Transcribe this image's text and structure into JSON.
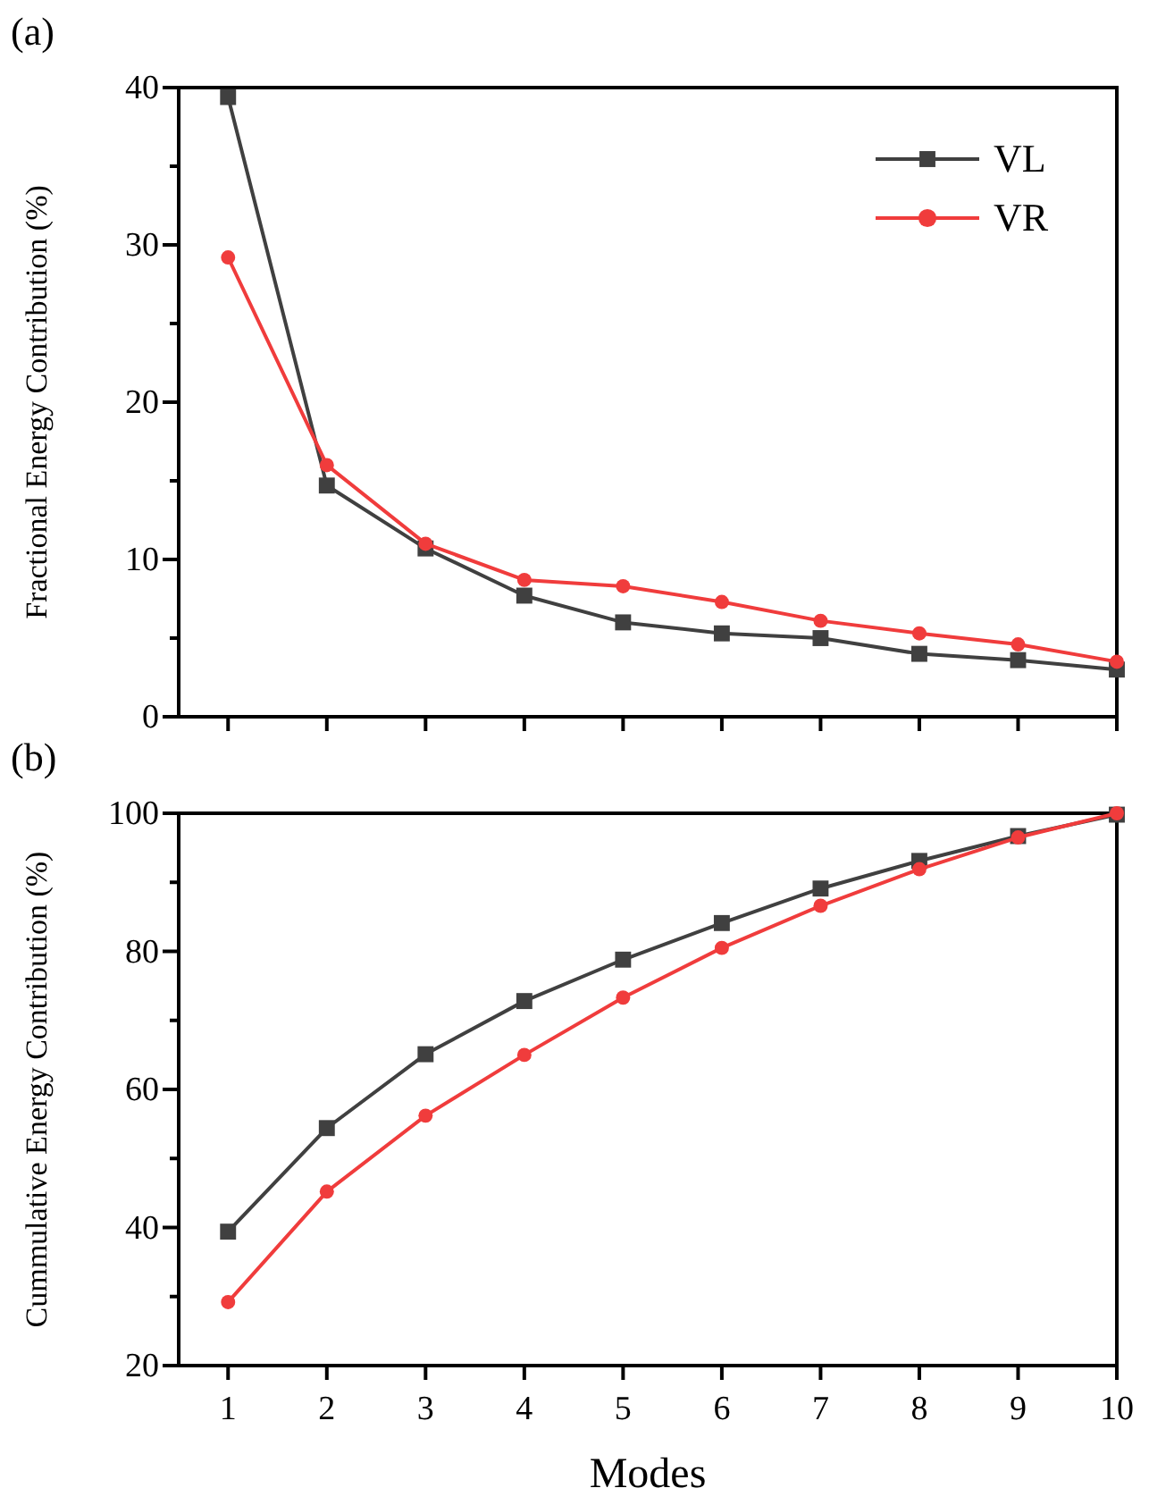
{
  "chart_data": [
    {
      "type": "line",
      "title": "(a)",
      "ylabel": "Fractional Energy Contribution (%)",
      "x": [
        1,
        2,
        3,
        4,
        5,
        6,
        7,
        8,
        9,
        10
      ],
      "xlim": [
        0.5,
        10
      ],
      "xticks": [
        {
          "value": 1,
          "label": null
        },
        {
          "value": 2,
          "label": null
        },
        {
          "value": 3,
          "label": null
        },
        {
          "value": 4,
          "label": null
        },
        {
          "value": 5,
          "label": null
        },
        {
          "value": 6,
          "label": null
        },
        {
          "value": 7,
          "label": null
        },
        {
          "value": 8,
          "label": null
        },
        {
          "value": 9,
          "label": null
        },
        {
          "value": 10,
          "label": null
        }
      ],
      "ylim": [
        0,
        40
      ],
      "yticks": [
        0,
        {
          "value": 5,
          "label": null
        },
        10,
        {
          "value": 15,
          "label": null
        },
        20,
        {
          "value": 25,
          "label": null
        },
        30,
        {
          "value": 35,
          "label": null
        },
        40
      ],
      "tick_labels": "y",
      "grid": false,
      "legend": "top right",
      "series": [
        {
          "name": "VL",
          "color": "#404040",
          "marker": "square",
          "values": [
            39.4,
            14.7,
            10.7,
            7.7,
            6.0,
            5.3,
            5.0,
            4.0,
            3.6,
            3.0
          ]
        },
        {
          "name": "VR",
          "color": "#f03c3c",
          "marker": "circle",
          "values": [
            29.2,
            16.0,
            11.0,
            8.7,
            8.3,
            7.3,
            6.1,
            5.3,
            4.6,
            3.5
          ]
        }
      ]
    },
    {
      "type": "line",
      "title": "(b)",
      "xlabel": "Modes",
      "ylabel": "Cummulative Energy Contribution (%)",
      "x": [
        1,
        2,
        3,
        4,
        5,
        6,
        7,
        8,
        9,
        10
      ],
      "xlim": [
        0.5,
        10
      ],
      "xticks": [
        1,
        2,
        3,
        4,
        5,
        6,
        7,
        8,
        9,
        10
      ],
      "ylim": [
        20,
        100
      ],
      "yticks": [
        20,
        {
          "value": 30,
          "label": null
        },
        40,
        {
          "value": 50,
          "label": null
        },
        60,
        {
          "value": 70,
          "label": null
        },
        80,
        {
          "value": 90,
          "label": null
        },
        100
      ],
      "grid": false,
      "legend": false,
      "series": [
        {
          "color": "#404040",
          "marker": "square",
          "values": [
            39.4,
            54.4,
            65.1,
            72.8,
            78.8,
            84.1,
            89.1,
            93.1,
            96.7,
            99.8
          ]
        },
        {
          "color": "#f03c3c",
          "marker": "circle",
          "values": [
            29.2,
            45.2,
            56.2,
            65.0,
            73.3,
            80.5,
            86.6,
            91.9,
            96.5,
            100
          ]
        }
      ]
    }
  ]
}
